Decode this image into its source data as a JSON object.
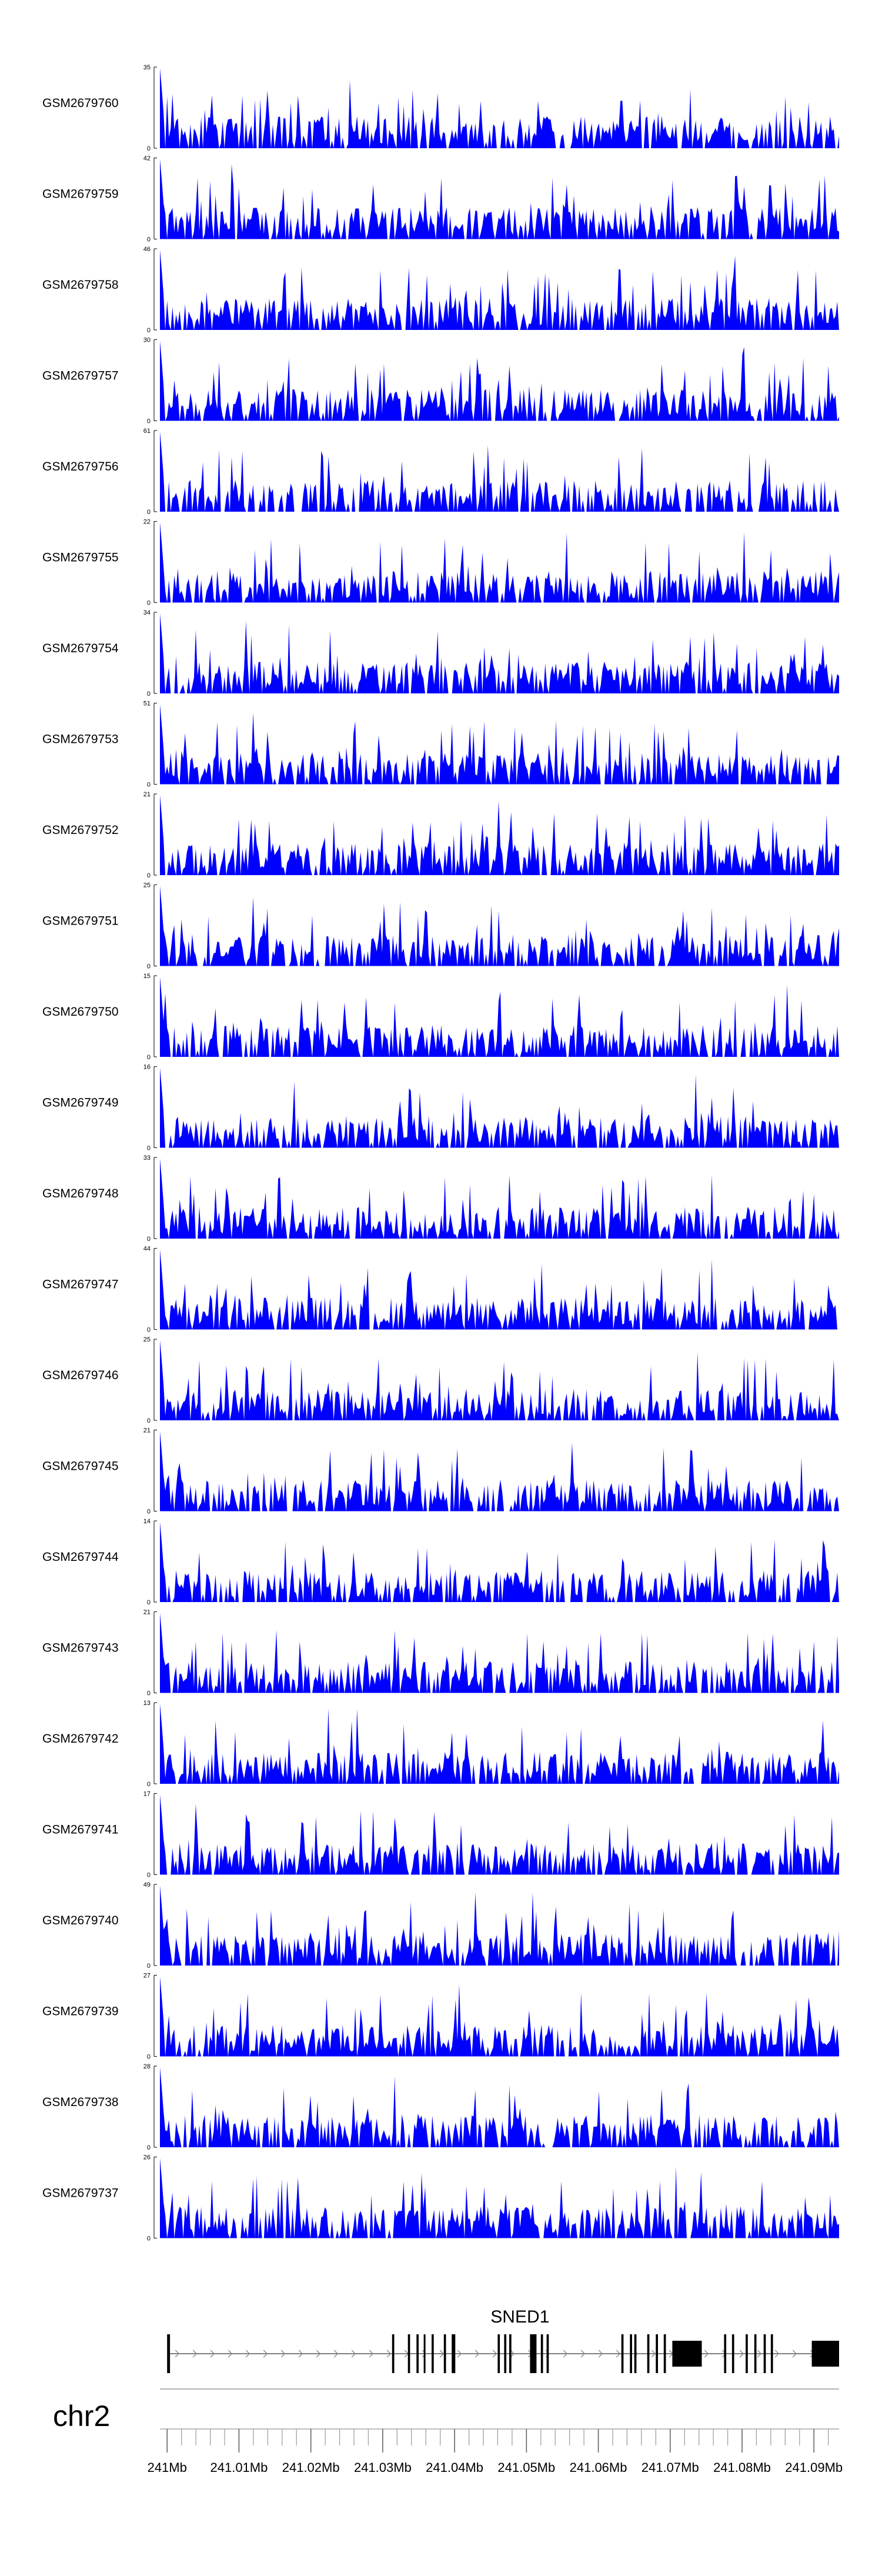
{
  "chart_data": {
    "type": "area",
    "title": "",
    "chromosome": "chr2",
    "x_unit": "Mb",
    "xlim": [
      240.999,
      241.0935
    ],
    "x_tick_labels": [
      "241Mb",
      "241.01Mb",
      "241.02Mb",
      "241.03Mb",
      "241.04Mb",
      "241.05Mb",
      "241.06Mb",
      "241.07Mb",
      "241.08Mb",
      "241.09Mb"
    ],
    "x_ticks": [
      241.0,
      241.01,
      241.02,
      241.03,
      241.04,
      241.05,
      241.06,
      241.07,
      241.08,
      241.09
    ],
    "fill_color": "#0000ff",
    "tracks": [
      {
        "name": "GSM2679760",
        "ymax": 35,
        "seed": 7601
      },
      {
        "name": "GSM2679759",
        "ymax": 42,
        "seed": 7592
      },
      {
        "name": "GSM2679758",
        "ymax": 46,
        "seed": 7583
      },
      {
        "name": "GSM2679757",
        "ymax": 30,
        "seed": 7574
      },
      {
        "name": "GSM2679756",
        "ymax": 61,
        "seed": 7565
      },
      {
        "name": "GSM2679755",
        "ymax": 22,
        "seed": 7556
      },
      {
        "name": "GSM2679754",
        "ymax": 34,
        "seed": 7547
      },
      {
        "name": "GSM2679753",
        "ymax": 51,
        "seed": 7538
      },
      {
        "name": "GSM2679752",
        "ymax": 21,
        "seed": 7529
      },
      {
        "name": "GSM2679751",
        "ymax": 25,
        "seed": 7511
      },
      {
        "name": "GSM2679750",
        "ymax": 15,
        "seed": 7502
      },
      {
        "name": "GSM2679749",
        "ymax": 16,
        "seed": 7493
      },
      {
        "name": "GSM2679748",
        "ymax": 33,
        "seed": 7484
      },
      {
        "name": "GSM2679747",
        "ymax": 44,
        "seed": 7475
      },
      {
        "name": "GSM2679746",
        "ymax": 25,
        "seed": 7466
      },
      {
        "name": "GSM2679745",
        "ymax": 21,
        "seed": 7457
      },
      {
        "name": "GSM2679744",
        "ymax": 14,
        "seed": 7448
      },
      {
        "name": "GSM2679743",
        "ymax": 21,
        "seed": 7439
      },
      {
        "name": "GSM2679742",
        "ymax": 13,
        "seed": 7421
      },
      {
        "name": "GSM2679741",
        "ymax": 17,
        "seed": 7412
      },
      {
        "name": "GSM2679740",
        "ymax": 49,
        "seed": 7403
      },
      {
        "name": "GSM2679739",
        "ymax": 27,
        "seed": 7394
      },
      {
        "name": "GSM2679738",
        "ymax": 28,
        "seed": 7385
      },
      {
        "name": "GSM2679737",
        "ymax": 26,
        "seed": 7376
      }
    ],
    "gene": {
      "name": "SNED1",
      "strand": "+",
      "start": 241.0,
      "end": 241.0935,
      "exons": [
        [
          241.0,
          241.0004
        ],
        [
          241.0313,
          241.0316
        ],
        [
          241.0335,
          241.0338
        ],
        [
          241.0347,
          241.035
        ],
        [
          241.0357,
          241.0359
        ],
        [
          241.0368,
          241.0371
        ],
        [
          241.0385,
          241.0388
        ],
        [
          241.0396,
          241.0401
        ],
        [
          241.046,
          241.0463
        ],
        [
          241.0469,
          241.0472
        ],
        [
          241.0476,
          241.0479
        ],
        [
          241.0505,
          241.0514
        ],
        [
          241.052,
          241.0523
        ],
        [
          241.0528,
          241.0531
        ],
        [
          241.0632,
          241.0635
        ],
        [
          241.0644,
          241.0647
        ],
        [
          241.065,
          241.0653
        ],
        [
          241.0668,
          241.0671
        ],
        [
          241.068,
          241.0683
        ],
        [
          241.0691,
          241.0694
        ],
        [
          241.0703,
          241.0744
        ],
        [
          241.0775,
          241.0778
        ],
        [
          241.0786,
          241.0789
        ],
        [
          241.0805,
          241.0808
        ],
        [
          241.0817,
          241.082
        ],
        [
          241.083,
          241.0833
        ],
        [
          241.084,
          241.0843
        ],
        [
          241.0897,
          241.0935
        ]
      ]
    }
  }
}
